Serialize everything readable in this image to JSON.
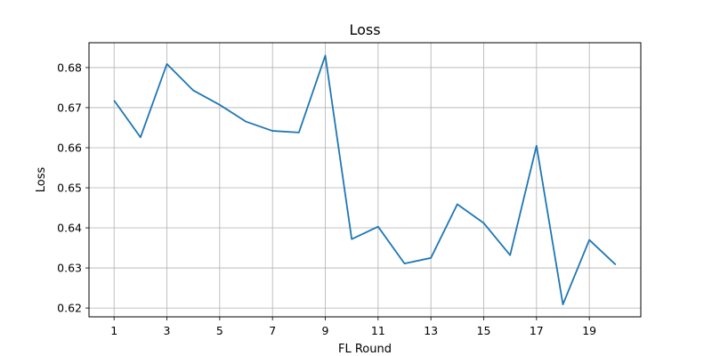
{
  "chart_data": {
    "type": "line",
    "title": "Loss",
    "xlabel": "FL Round",
    "ylabel": "Loss",
    "xlim": [
      0.05,
      20.95
    ],
    "ylim": [
      0.6178,
      0.6862
    ],
    "xticks": [
      1,
      3,
      5,
      7,
      9,
      11,
      13,
      15,
      17,
      19
    ],
    "yticks": [
      0.62,
      0.63,
      0.64,
      0.65,
      0.66,
      0.67,
      0.68
    ],
    "ytick_labels": [
      "0.62",
      "0.63",
      "0.64",
      "0.65",
      "0.66",
      "0.67",
      "0.68"
    ],
    "grid": true,
    "series": [
      {
        "color": "#1f77b4",
        "x": [
          1,
          2,
          3,
          4,
          5,
          6,
          7,
          8,
          9,
          10,
          11,
          12,
          13,
          14,
          15,
          16,
          17,
          18,
          19,
          20
        ],
        "values": [
          0.6718,
          0.6626,
          0.6809,
          0.6743,
          0.6707,
          0.6665,
          0.6642,
          0.6638,
          0.683,
          0.6372,
          0.6403,
          0.6311,
          0.6325,
          0.6459,
          0.6412,
          0.6332,
          0.6605,
          0.6209,
          0.637,
          0.6308
        ]
      }
    ]
  }
}
